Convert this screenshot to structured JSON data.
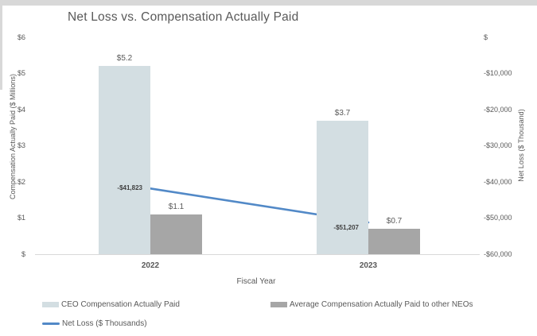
{
  "chart": {
    "title": "Net Loss vs. Compensation Actually Paid"
  },
  "chart_data": {
    "type": "bar+line combo",
    "categories": [
      "2022",
      "2023"
    ],
    "series": [
      {
        "name": "CEO Compensation Actually Paid",
        "type": "bar",
        "axis": "left",
        "color": "#d3dee2",
        "values": [
          5.2,
          3.7
        ],
        "labels": [
          "$5.2",
          "$3.7"
        ]
      },
      {
        "name": "Average Compensation Actually Paid to other NEOs",
        "type": "bar",
        "axis": "left",
        "color": "#a6a6a6",
        "values": [
          1.1,
          0.7
        ],
        "labels": [
          "$1.1",
          "$0.7"
        ]
      },
      {
        "name": "Net Loss ($ Thousands)",
        "type": "line",
        "axis": "right",
        "color": "#5289c7",
        "values": [
          -41823,
          -51207
        ],
        "labels": [
          "-$41,823",
          "-$51,207"
        ]
      }
    ],
    "left_axis": {
      "title": "Compensation Actually Paid ($ Millions)",
      "ticks": [
        "$6",
        "$5",
        "$4",
        "$3",
        "$2",
        "$1",
        "$"
      ],
      "min": 0,
      "max": 6
    },
    "right_axis": {
      "title": "Net Loss ($ Thousand)",
      "ticks": [
        "$",
        "-$10,000",
        "-$20,000",
        "-$30,000",
        "-$40,000",
        "-$50,000",
        "-$60,000"
      ],
      "min": -60000,
      "max": 0
    },
    "x_axis": {
      "title": "Fiscal Year"
    },
    "grid": "off",
    "legend_position": "bottom"
  },
  "legend": {
    "items": [
      {
        "label": "CEO Compensation Actually Paid",
        "swatch": "bar",
        "color": "#d3dee2"
      },
      {
        "label": "Average Compensation Actually Paid to other NEOs",
        "swatch": "bar",
        "color": "#a6a6a6"
      },
      {
        "label": "Net Loss ($ Thousands)",
        "swatch": "line",
        "color": "#5289c7"
      }
    ]
  },
  "colors": {
    "text": "#595959",
    "data_label_dark": "#404040",
    "axis_line": "#d9d9d9",
    "window_edge": "#d8d8d8"
  }
}
